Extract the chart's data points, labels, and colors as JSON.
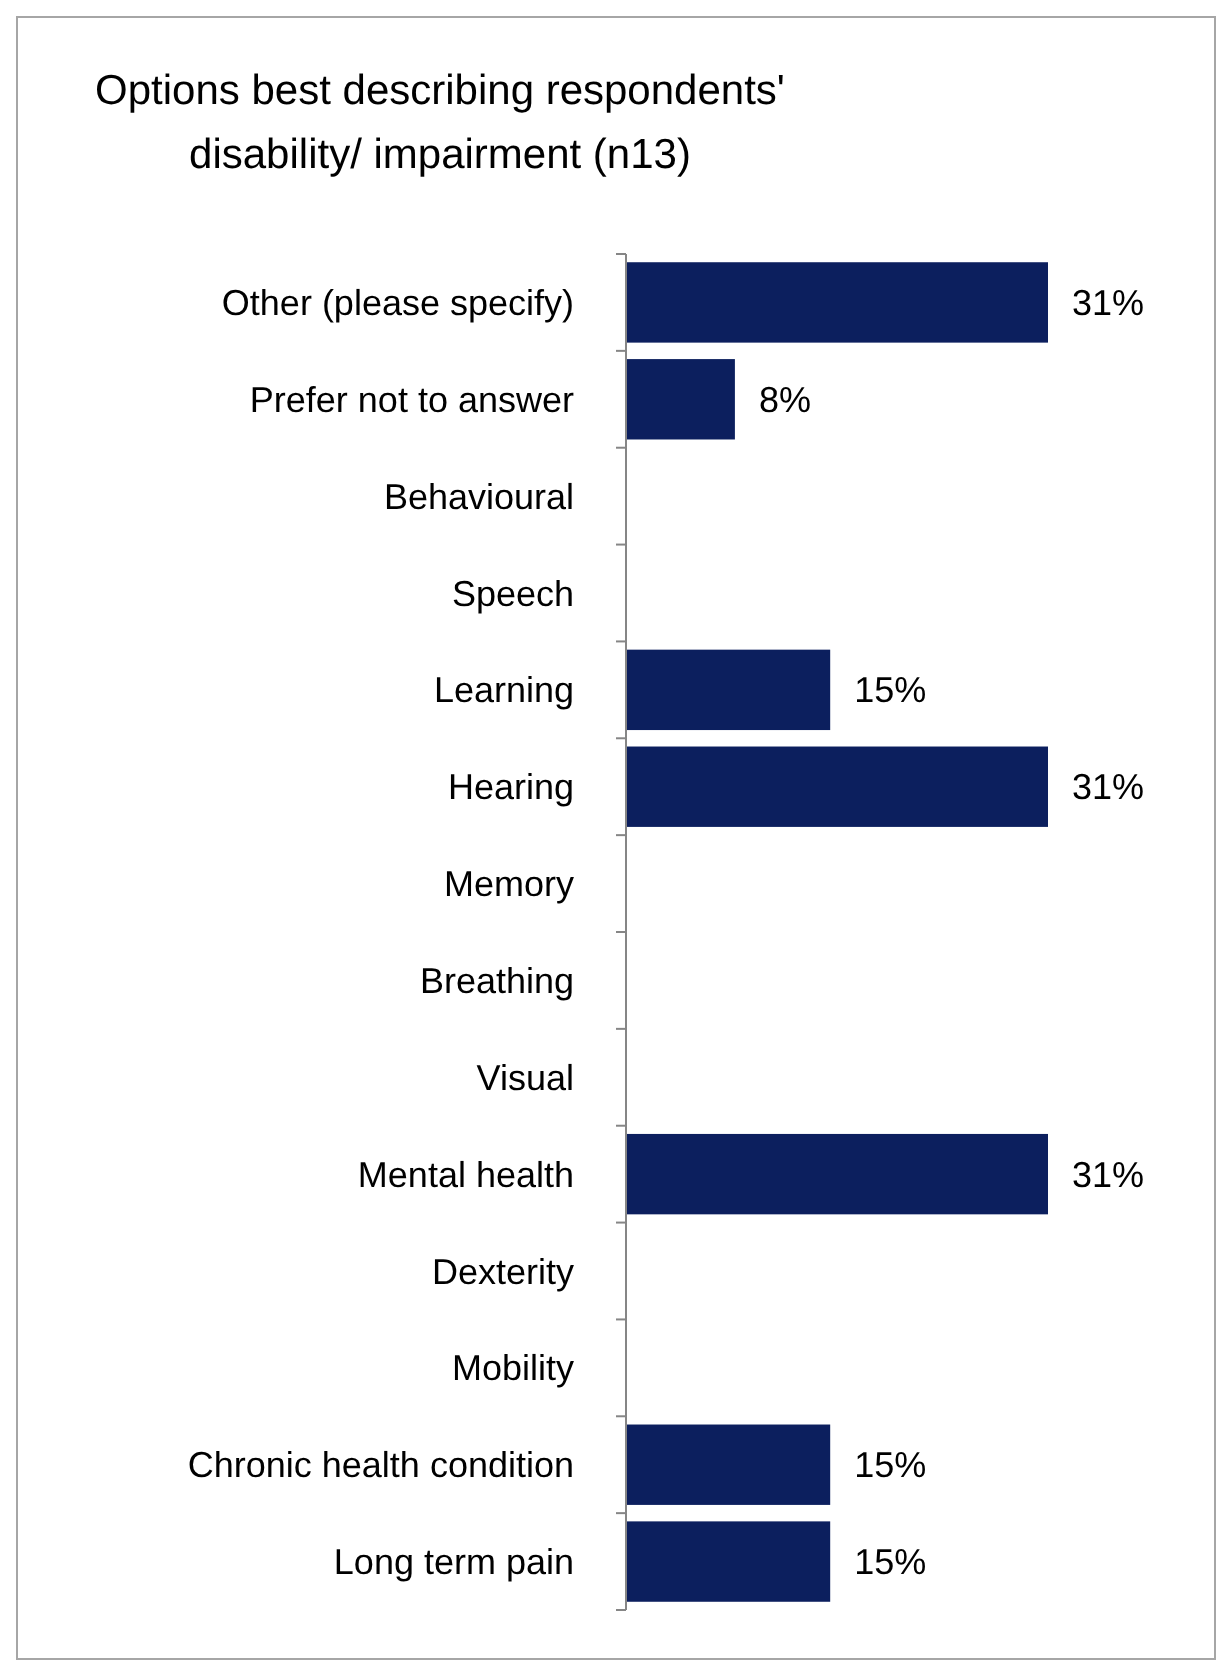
{
  "chart_data": {
    "type": "bar",
    "orientation": "horizontal",
    "title": "Options best describing respondents'\ndisability/ impairment (n13)",
    "categories": [
      "Other (please specify)",
      "Prefer not to answer",
      "Behavioural",
      "Speech",
      "Learning",
      "Hearing",
      "Memory",
      "Breathing",
      "Visual",
      "Mental health",
      "Dexterity",
      "Mobility",
      "Chronic health condition",
      "Long term pain"
    ],
    "values": [
      31,
      8,
      0,
      0,
      15,
      31,
      0,
      0,
      0,
      31,
      0,
      0,
      15,
      15
    ],
    "value_labels": [
      "31%",
      "8%",
      null,
      null,
      "15%",
      "31%",
      null,
      null,
      null,
      "31%",
      null,
      null,
      "15%",
      "15%"
    ],
    "color": "#0c1f5e"
  }
}
